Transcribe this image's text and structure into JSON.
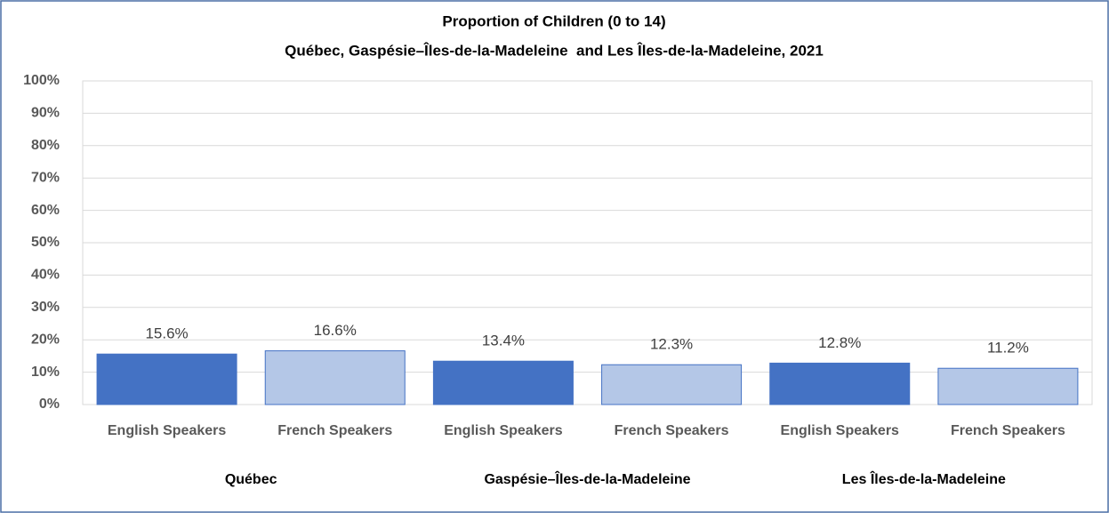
{
  "chart_data": {
    "type": "bar",
    "title": "Proportion of Children (0 to 14)",
    "subtitle": "Québec, Gaspésie–Îles-de-la-Madeleine  and Les Îles-de-la-Madeleine, 2021",
    "categories": [
      "English Speakers",
      "French Speakers",
      "English Speakers",
      "French Speakers",
      "English Speakers",
      "French Speakers"
    ],
    "groups": [
      "Québec",
      "Gaspésie–Îles-de-la-Madeleine",
      "Les Îles-de-la-Madeleine"
    ],
    "values": [
      15.6,
      16.6,
      13.4,
      12.3,
      12.8,
      11.2
    ],
    "value_labels": [
      "15.6%",
      "16.6%",
      "13.4%",
      "12.3%",
      "12.8%",
      "11.2%"
    ],
    "colors": [
      "#4472c4",
      "#b4c7e7",
      "#4472c4",
      "#b4c7e7",
      "#4472c4",
      "#b4c7e7"
    ],
    "ylim": [
      0,
      100
    ],
    "yticks": [
      {
        "value": 0,
        "label": "0%"
      },
      {
        "value": 10,
        "label": "10%"
      },
      {
        "value": 20,
        "label": "20%"
      },
      {
        "value": 30,
        "label": "30%"
      },
      {
        "value": 40,
        "label": "40%"
      },
      {
        "value": 50,
        "label": "50%"
      },
      {
        "value": 60,
        "label": "60%"
      },
      {
        "value": 70,
        "label": "70%"
      },
      {
        "value": 80,
        "label": "80%"
      },
      {
        "value": 90,
        "label": "90%"
      },
      {
        "value": 100,
        "label": "100%"
      }
    ],
    "grid": true
  }
}
